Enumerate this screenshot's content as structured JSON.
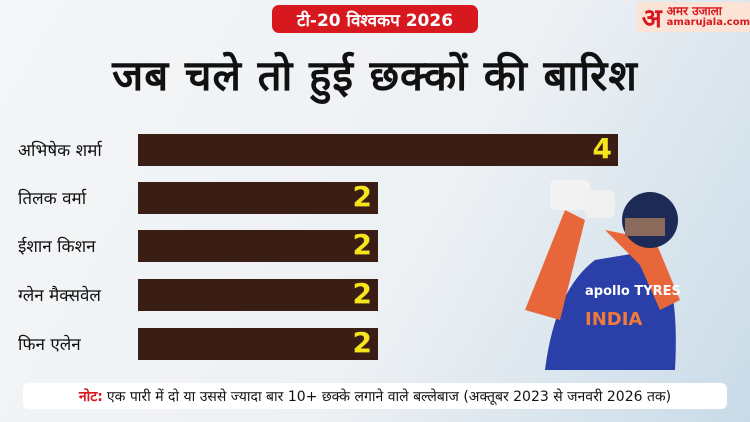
{
  "header": {
    "badge": "टी-20 विश्वकप 2026",
    "title": "जब चले तो हुई छक्कों की बारिश"
  },
  "logo": {
    "mark": "अ",
    "name": "अमर उजाला",
    "site": "amarujala.com"
  },
  "colors": {
    "bar": "#3a1d14",
    "value_text": "#f5e51a",
    "accent": "#d7191f"
  },
  "chart_data": {
    "type": "bar",
    "orientation": "horizontal",
    "categories": [
      "अभिषेक शर्मा",
      "तिलक वर्मा",
      "ईशान किशन",
      "ग्लेन मैक्सवेल",
      "फिन एलेन"
    ],
    "values": [
      4,
      2,
      2,
      2,
      2
    ],
    "xlim": [
      0,
      4
    ],
    "grid": false
  },
  "note": {
    "label": "नोट:",
    "text": "एक पारी में दो या उससे ज्यादा बार 10+ छक्के लगाने वाले बल्लेबाज (अक्तूबर 2023 से जनवरी 2026 तक)"
  },
  "player": {
    "jersey_text": "INDIA",
    "sponsor": "apollo TYRES"
  }
}
